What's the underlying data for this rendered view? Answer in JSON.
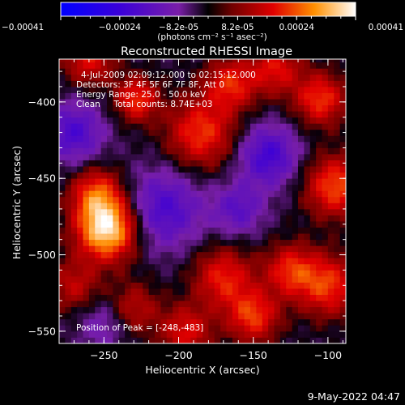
{
  "chart_data": {
    "type": "heatmap",
    "title": "Reconstructed RHESSI Image",
    "xlabel": "Heliocentric X (arcsec)",
    "ylabel": "Heliocentric Y (arcsec)",
    "xlim": [
      -280,
      -88
    ],
    "ylim": [
      -558,
      -372
    ],
    "x_ticks": [
      -250,
      -200,
      -150,
      -100
    ],
    "y_ticks": [
      -550,
      -500,
      -450,
      -400
    ],
    "colorbar": {
      "ticks": [
        "-0.00041",
        "-0.00024",
        "-8.2e-05",
        "8.2e-05",
        "0.00024",
        "0.00041"
      ],
      "units": "(photons cm⁻² s⁻¹ asec⁻²)",
      "range": [
        -0.00041,
        0.00041
      ]
    },
    "annotations": {
      "time": "4-Jul-2009 02:09:12.000 to 02:15:12.000",
      "detectors": "Detectors: 3F 4F 5F 6F 7F 8F, Att 0",
      "energy": "Energy Range: 25.0 - 50.0 keV",
      "clean": "Clean     Total counts: 8.74E+03",
      "peak": "Position of Peak = [-248,-483]"
    },
    "peak": {
      "x": -248,
      "y": -483
    },
    "sources": [
      {
        "x": -248,
        "y": -483,
        "amp": 1.0,
        "sigma": 14
      },
      {
        "x": -255,
        "y": -460,
        "amp": 0.55,
        "sigma": 12
      },
      {
        "x": -228,
        "y": -398,
        "amp": 0.55,
        "sigma": 10
      },
      {
        "x": -260,
        "y": -372,
        "amp": 0.45,
        "sigma": 12
      },
      {
        "x": -185,
        "y": -420,
        "amp": 0.55,
        "sigma": 16
      },
      {
        "x": -165,
        "y": -388,
        "amp": 0.5,
        "sigma": 12
      },
      {
        "x": -135,
        "y": -378,
        "amp": 0.45,
        "sigma": 12
      },
      {
        "x": -105,
        "y": -398,
        "amp": 0.55,
        "sigma": 12
      },
      {
        "x": -95,
        "y": -455,
        "amp": 0.6,
        "sigma": 14
      },
      {
        "x": -100,
        "y": -520,
        "amp": 0.55,
        "sigma": 14
      },
      {
        "x": -125,
        "y": -510,
        "amp": 0.5,
        "sigma": 12
      },
      {
        "x": -170,
        "y": -515,
        "amp": 0.5,
        "sigma": 14
      },
      {
        "x": -150,
        "y": -540,
        "amp": 0.55,
        "sigma": 12
      },
      {
        "x": -195,
        "y": -550,
        "amp": 0.45,
        "sigma": 12
      },
      {
        "x": -230,
        "y": -535,
        "amp": 0.35,
        "sigma": 12
      },
      {
        "x": -270,
        "y": -520,
        "amp": 0.35,
        "sigma": 12
      },
      {
        "x": -140,
        "y": -435,
        "amp": -0.5,
        "sigma": 14
      },
      {
        "x": -210,
        "y": -470,
        "amp": -0.45,
        "sigma": 18
      },
      {
        "x": -270,
        "y": -420,
        "amp": -0.45,
        "sigma": 14
      },
      {
        "x": -160,
        "y": -470,
        "amp": -0.35,
        "sigma": 12
      },
      {
        "x": -250,
        "y": -545,
        "amp": -0.25,
        "sigma": 12
      }
    ]
  },
  "footer": {
    "timestamp": "9-May-2022 04:47"
  }
}
